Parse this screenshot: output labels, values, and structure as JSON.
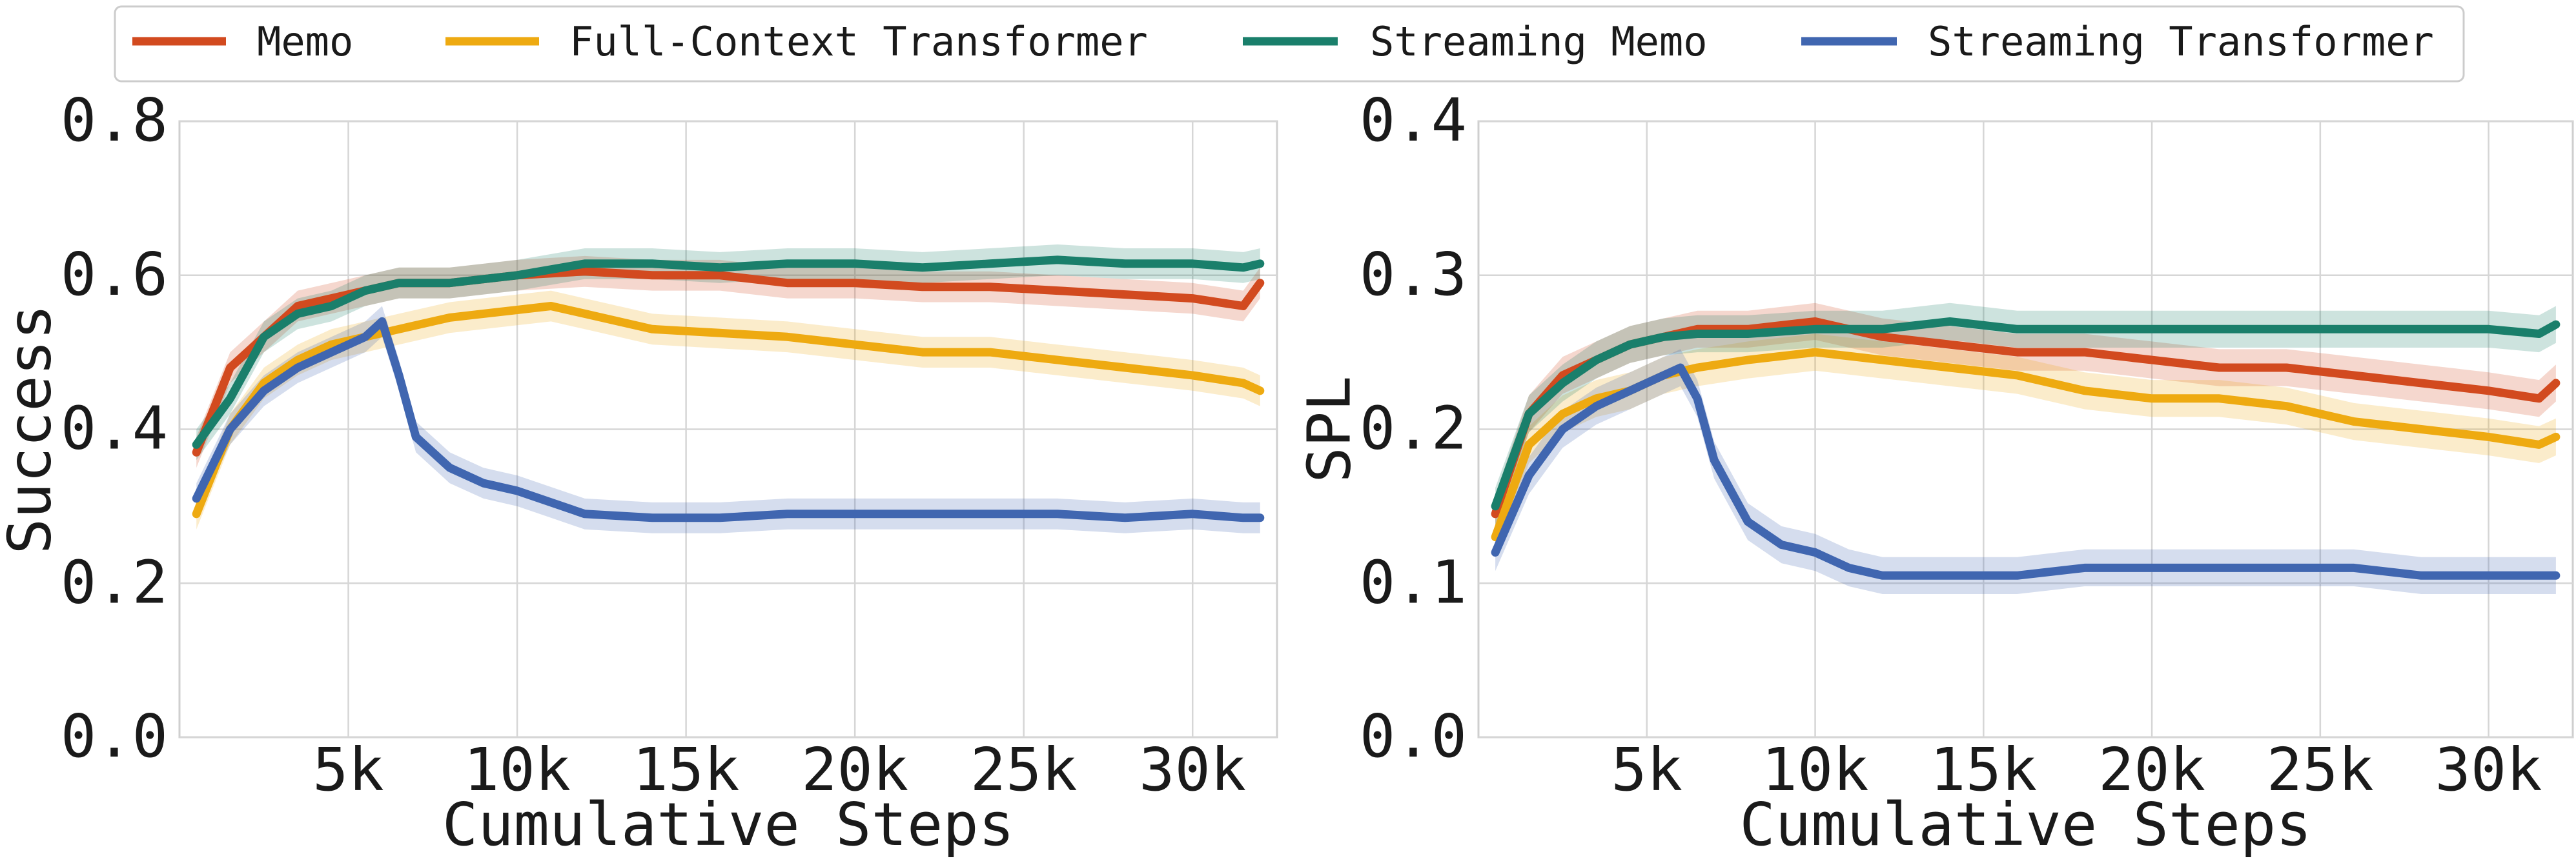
{
  "legend": [
    {
      "label": "Memo",
      "color": "#d24a1f"
    },
    {
      "label": "Full-Context Transformer",
      "color": "#eeaa11"
    },
    {
      "label": "Streaming Memo",
      "color": "#1a7f6b"
    },
    {
      "label": "Streaming Transformer",
      "color": "#4066b0"
    }
  ],
  "chart_data": [
    {
      "type": "line",
      "title": "",
      "xlabel": "Cumulative Steps",
      "ylabel": "Success",
      "xlim": [
        0,
        32500
      ],
      "ylim": [
        0.0,
        0.8
      ],
      "xticks": [
        5000,
        10000,
        15000,
        20000,
        25000,
        30000
      ],
      "xtick_labels": [
        "5k",
        "10k",
        "15k",
        "20k",
        "25k",
        "30k"
      ],
      "yticks": [
        0.0,
        0.2,
        0.4,
        0.6,
        0.8
      ],
      "ytick_labels": [
        "0.0",
        "0.2",
        "0.4",
        "0.6",
        "0.8"
      ],
      "grid": true,
      "series": [
        {
          "name": "Memo",
          "color": "#d24a1f",
          "band": 0.02,
          "x": [
            500,
            1500,
            2500,
            3500,
            4500,
            5500,
            6500,
            8000,
            10000,
            12000,
            14000,
            16000,
            18000,
            20000,
            22000,
            24000,
            26000,
            28000,
            30000,
            31500,
            32000
          ],
          "y": [
            0.37,
            0.48,
            0.52,
            0.56,
            0.57,
            0.58,
            0.59,
            0.59,
            0.6,
            0.605,
            0.6,
            0.6,
            0.59,
            0.59,
            0.585,
            0.585,
            0.58,
            0.575,
            0.57,
            0.56,
            0.59
          ]
        },
        {
          "name": "Full-Context Transformer",
          "color": "#eeaa11",
          "band": 0.02,
          "x": [
            500,
            1500,
            2500,
            3500,
            4500,
            5500,
            6500,
            8000,
            10000,
            11000,
            12000,
            14000,
            16000,
            18000,
            20000,
            22000,
            24000,
            26000,
            28000,
            30000,
            31500,
            32000
          ],
          "y": [
            0.29,
            0.4,
            0.46,
            0.49,
            0.51,
            0.52,
            0.53,
            0.545,
            0.555,
            0.56,
            0.55,
            0.53,
            0.525,
            0.52,
            0.51,
            0.5,
            0.5,
            0.49,
            0.48,
            0.47,
            0.46,
            0.45
          ]
        },
        {
          "name": "Streaming Memo",
          "color": "#1a7f6b",
          "band": 0.02,
          "x": [
            500,
            1500,
            2500,
            3500,
            4500,
            5500,
            6500,
            8000,
            10000,
            12000,
            14000,
            16000,
            18000,
            20000,
            22000,
            24000,
            26000,
            28000,
            30000,
            31500,
            32000
          ],
          "y": [
            0.38,
            0.44,
            0.52,
            0.55,
            0.56,
            0.58,
            0.59,
            0.59,
            0.6,
            0.615,
            0.615,
            0.61,
            0.615,
            0.615,
            0.61,
            0.615,
            0.62,
            0.615,
            0.615,
            0.61,
            0.615
          ]
        },
        {
          "name": "Streaming Transformer",
          "color": "#4066b0",
          "band": 0.02,
          "x": [
            500,
            1500,
            2500,
            3500,
            4500,
            5500,
            6000,
            6500,
            7000,
            8000,
            9000,
            10000,
            11000,
            12000,
            14000,
            16000,
            18000,
            20000,
            22000,
            24000,
            26000,
            28000,
            30000,
            31500,
            32000
          ],
          "y": [
            0.31,
            0.4,
            0.45,
            0.48,
            0.5,
            0.52,
            0.54,
            0.47,
            0.39,
            0.35,
            0.33,
            0.32,
            0.305,
            0.29,
            0.285,
            0.285,
            0.29,
            0.29,
            0.29,
            0.29,
            0.29,
            0.285,
            0.29,
            0.285,
            0.285
          ]
        }
      ]
    },
    {
      "type": "line",
      "title": "",
      "xlabel": "Cumulative Steps",
      "ylabel": "SPL",
      "xlim": [
        0,
        32500
      ],
      "ylim": [
        0.0,
        0.4
      ],
      "xticks": [
        5000,
        10000,
        15000,
        20000,
        25000,
        30000
      ],
      "xtick_labels": [
        "5k",
        "10k",
        "15k",
        "20k",
        "25k",
        "30k"
      ],
      "yticks": [
        0.0,
        0.1,
        0.2,
        0.3,
        0.4
      ],
      "ytick_labels": [
        "0.0",
        "0.1",
        "0.2",
        "0.3",
        "0.4"
      ],
      "grid": true,
      "series": [
        {
          "name": "Memo",
          "color": "#d24a1f",
          "band": 0.012,
          "x": [
            500,
            1500,
            2500,
            3500,
            4500,
            5500,
            6500,
            8000,
            10000,
            12000,
            14000,
            16000,
            18000,
            20000,
            22000,
            24000,
            26000,
            28000,
            30000,
            31500,
            32000
          ],
          "y": [
            0.145,
            0.21,
            0.235,
            0.245,
            0.255,
            0.26,
            0.265,
            0.265,
            0.27,
            0.26,
            0.255,
            0.25,
            0.25,
            0.245,
            0.24,
            0.24,
            0.235,
            0.23,
            0.225,
            0.22,
            0.23
          ]
        },
        {
          "name": "Full-Context Transformer",
          "color": "#eeaa11",
          "band": 0.012,
          "x": [
            500,
            1500,
            2500,
            3500,
            4500,
            5500,
            6500,
            8000,
            10000,
            12000,
            14000,
            16000,
            18000,
            20000,
            22000,
            24000,
            26000,
            28000,
            30000,
            31500,
            32000
          ],
          "y": [
            0.13,
            0.19,
            0.21,
            0.22,
            0.225,
            0.235,
            0.24,
            0.245,
            0.25,
            0.245,
            0.24,
            0.235,
            0.225,
            0.22,
            0.22,
            0.215,
            0.205,
            0.2,
            0.195,
            0.19,
            0.195
          ]
        },
        {
          "name": "Streaming Memo",
          "color": "#1a7f6b",
          "band": 0.012,
          "x": [
            500,
            1500,
            2500,
            3500,
            4500,
            5500,
            6500,
            8000,
            10000,
            12000,
            14000,
            16000,
            18000,
            20000,
            22000,
            24000,
            26000,
            28000,
            30000,
            31500,
            32000
          ],
          "y": [
            0.15,
            0.21,
            0.23,
            0.245,
            0.255,
            0.26,
            0.262,
            0.262,
            0.265,
            0.265,
            0.27,
            0.265,
            0.265,
            0.265,
            0.265,
            0.265,
            0.265,
            0.265,
            0.265,
            0.262,
            0.268
          ]
        },
        {
          "name": "Streaming Transformer",
          "color": "#4066b0",
          "band": 0.012,
          "x": [
            500,
            1500,
            2500,
            3500,
            4500,
            5500,
            6000,
            6500,
            7000,
            8000,
            9000,
            10000,
            11000,
            12000,
            14000,
            16000,
            18000,
            20000,
            22000,
            24000,
            26000,
            28000,
            30000,
            31500,
            32000
          ],
          "y": [
            0.12,
            0.17,
            0.2,
            0.215,
            0.225,
            0.235,
            0.24,
            0.22,
            0.18,
            0.14,
            0.125,
            0.12,
            0.11,
            0.105,
            0.105,
            0.105,
            0.11,
            0.11,
            0.11,
            0.11,
            0.11,
            0.105,
            0.105,
            0.105,
            0.105
          ]
        }
      ]
    }
  ]
}
